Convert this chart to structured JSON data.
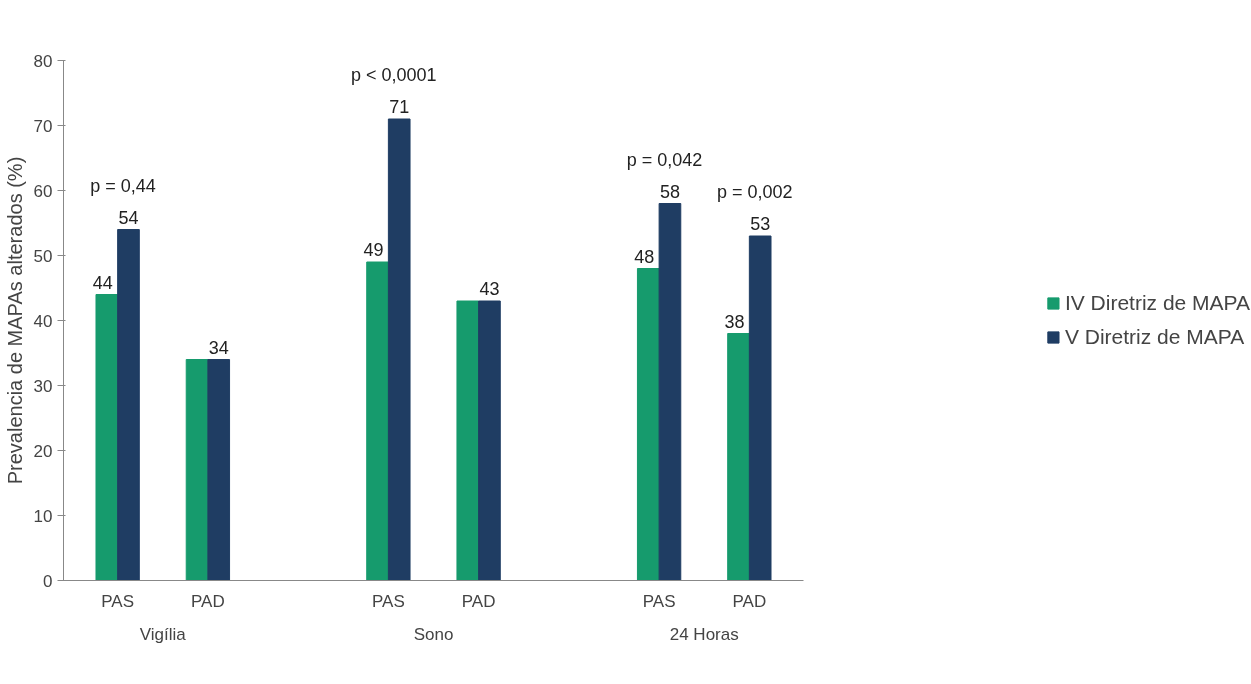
{
  "chart_data": {
    "type": "bar",
    "ylabel": "Prevalencia de MAPAs alterados (%)",
    "categories": [
      "PAS",
      "PAD",
      "PAS",
      "PAD",
      "PAS",
      "PAD"
    ],
    "series": [
      {
        "name": "IV Diretriz de MAPA",
        "color": "#169b6d",
        "values": [
          44,
          34,
          49,
          43,
          48,
          38
        ],
        "value_labels": [
          "44",
          null,
          "49",
          null,
          "48",
          "38"
        ]
      },
      {
        "name": "V Diretriz de MAPA",
        "color": "#1f3d63",
        "values": [
          54,
          34,
          71,
          43,
          58,
          53
        ],
        "value_labels": [
          "54",
          "34",
          "71",
          "43",
          "58",
          "53"
        ]
      }
    ],
    "annotations": [
      "Vigília",
      "Sono",
      "24 Horas",
      "p = 0,44",
      "p < 0,0001",
      "p = 0,042",
      "p = 0,002"
    ],
    "ylim": [
      0,
      80
    ],
    "yticks": [
      0,
      10,
      20,
      30,
      40,
      50,
      60,
      70,
      80
    ],
    "grid": false,
    "legend": "right"
  }
}
